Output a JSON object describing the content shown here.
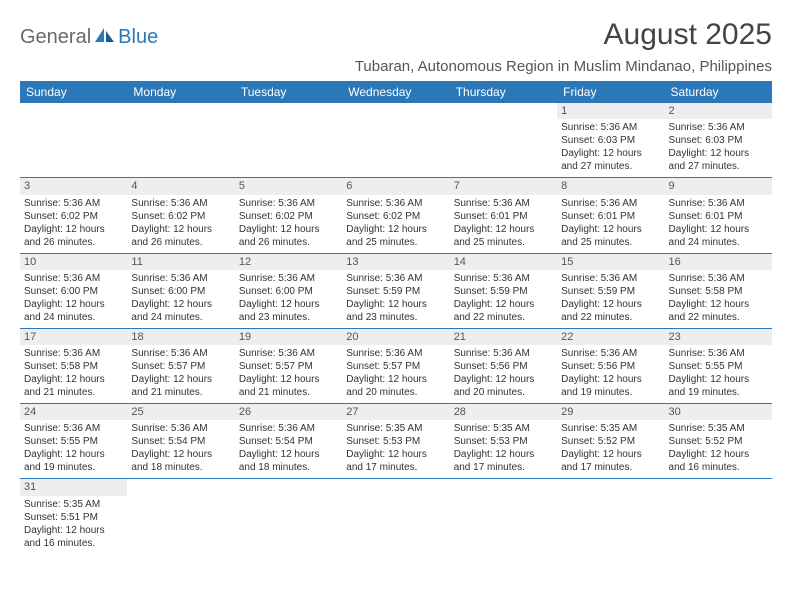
{
  "logo": {
    "general": "General",
    "blue": "Blue"
  },
  "header": {
    "month_title": "August 2025",
    "location": "Tubaran, Autonomous Region in Muslim Mindanao, Philippines"
  },
  "colors": {
    "header_bg": "#2a78b8",
    "daynum_bg": "#eeeeee",
    "rule": "#2a78b8"
  },
  "weekdays": [
    "Sunday",
    "Monday",
    "Tuesday",
    "Wednesday",
    "Thursday",
    "Friday",
    "Saturday"
  ],
  "weeks": [
    [
      null,
      null,
      null,
      null,
      null,
      {
        "n": "1",
        "sr": "Sunrise: 5:36 AM",
        "ss": "Sunset: 6:03 PM",
        "d1": "Daylight: 12 hours",
        "d2": "and 27 minutes."
      },
      {
        "n": "2",
        "sr": "Sunrise: 5:36 AM",
        "ss": "Sunset: 6:03 PM",
        "d1": "Daylight: 12 hours",
        "d2": "and 27 minutes."
      }
    ],
    [
      {
        "n": "3",
        "sr": "Sunrise: 5:36 AM",
        "ss": "Sunset: 6:02 PM",
        "d1": "Daylight: 12 hours",
        "d2": "and 26 minutes."
      },
      {
        "n": "4",
        "sr": "Sunrise: 5:36 AM",
        "ss": "Sunset: 6:02 PM",
        "d1": "Daylight: 12 hours",
        "d2": "and 26 minutes."
      },
      {
        "n": "5",
        "sr": "Sunrise: 5:36 AM",
        "ss": "Sunset: 6:02 PM",
        "d1": "Daylight: 12 hours",
        "d2": "and 26 minutes."
      },
      {
        "n": "6",
        "sr": "Sunrise: 5:36 AM",
        "ss": "Sunset: 6:02 PM",
        "d1": "Daylight: 12 hours",
        "d2": "and 25 minutes."
      },
      {
        "n": "7",
        "sr": "Sunrise: 5:36 AM",
        "ss": "Sunset: 6:01 PM",
        "d1": "Daylight: 12 hours",
        "d2": "and 25 minutes."
      },
      {
        "n": "8",
        "sr": "Sunrise: 5:36 AM",
        "ss": "Sunset: 6:01 PM",
        "d1": "Daylight: 12 hours",
        "d2": "and 25 minutes."
      },
      {
        "n": "9",
        "sr": "Sunrise: 5:36 AM",
        "ss": "Sunset: 6:01 PM",
        "d1": "Daylight: 12 hours",
        "d2": "and 24 minutes."
      }
    ],
    [
      {
        "n": "10",
        "sr": "Sunrise: 5:36 AM",
        "ss": "Sunset: 6:00 PM",
        "d1": "Daylight: 12 hours",
        "d2": "and 24 minutes."
      },
      {
        "n": "11",
        "sr": "Sunrise: 5:36 AM",
        "ss": "Sunset: 6:00 PM",
        "d1": "Daylight: 12 hours",
        "d2": "and 24 minutes."
      },
      {
        "n": "12",
        "sr": "Sunrise: 5:36 AM",
        "ss": "Sunset: 6:00 PM",
        "d1": "Daylight: 12 hours",
        "d2": "and 23 minutes."
      },
      {
        "n": "13",
        "sr": "Sunrise: 5:36 AM",
        "ss": "Sunset: 5:59 PM",
        "d1": "Daylight: 12 hours",
        "d2": "and 23 minutes."
      },
      {
        "n": "14",
        "sr": "Sunrise: 5:36 AM",
        "ss": "Sunset: 5:59 PM",
        "d1": "Daylight: 12 hours",
        "d2": "and 22 minutes."
      },
      {
        "n": "15",
        "sr": "Sunrise: 5:36 AM",
        "ss": "Sunset: 5:59 PM",
        "d1": "Daylight: 12 hours",
        "d2": "and 22 minutes."
      },
      {
        "n": "16",
        "sr": "Sunrise: 5:36 AM",
        "ss": "Sunset: 5:58 PM",
        "d1": "Daylight: 12 hours",
        "d2": "and 22 minutes."
      }
    ],
    [
      {
        "n": "17",
        "sr": "Sunrise: 5:36 AM",
        "ss": "Sunset: 5:58 PM",
        "d1": "Daylight: 12 hours",
        "d2": "and 21 minutes."
      },
      {
        "n": "18",
        "sr": "Sunrise: 5:36 AM",
        "ss": "Sunset: 5:57 PM",
        "d1": "Daylight: 12 hours",
        "d2": "and 21 minutes."
      },
      {
        "n": "19",
        "sr": "Sunrise: 5:36 AM",
        "ss": "Sunset: 5:57 PM",
        "d1": "Daylight: 12 hours",
        "d2": "and 21 minutes."
      },
      {
        "n": "20",
        "sr": "Sunrise: 5:36 AM",
        "ss": "Sunset: 5:57 PM",
        "d1": "Daylight: 12 hours",
        "d2": "and 20 minutes."
      },
      {
        "n": "21",
        "sr": "Sunrise: 5:36 AM",
        "ss": "Sunset: 5:56 PM",
        "d1": "Daylight: 12 hours",
        "d2": "and 20 minutes."
      },
      {
        "n": "22",
        "sr": "Sunrise: 5:36 AM",
        "ss": "Sunset: 5:56 PM",
        "d1": "Daylight: 12 hours",
        "d2": "and 19 minutes."
      },
      {
        "n": "23",
        "sr": "Sunrise: 5:36 AM",
        "ss": "Sunset: 5:55 PM",
        "d1": "Daylight: 12 hours",
        "d2": "and 19 minutes."
      }
    ],
    [
      {
        "n": "24",
        "sr": "Sunrise: 5:36 AM",
        "ss": "Sunset: 5:55 PM",
        "d1": "Daylight: 12 hours",
        "d2": "and 19 minutes."
      },
      {
        "n": "25",
        "sr": "Sunrise: 5:36 AM",
        "ss": "Sunset: 5:54 PM",
        "d1": "Daylight: 12 hours",
        "d2": "and 18 minutes."
      },
      {
        "n": "26",
        "sr": "Sunrise: 5:36 AM",
        "ss": "Sunset: 5:54 PM",
        "d1": "Daylight: 12 hours",
        "d2": "and 18 minutes."
      },
      {
        "n": "27",
        "sr": "Sunrise: 5:35 AM",
        "ss": "Sunset: 5:53 PM",
        "d1": "Daylight: 12 hours",
        "d2": "and 17 minutes."
      },
      {
        "n": "28",
        "sr": "Sunrise: 5:35 AM",
        "ss": "Sunset: 5:53 PM",
        "d1": "Daylight: 12 hours",
        "d2": "and 17 minutes."
      },
      {
        "n": "29",
        "sr": "Sunrise: 5:35 AM",
        "ss": "Sunset: 5:52 PM",
        "d1": "Daylight: 12 hours",
        "d2": "and 17 minutes."
      },
      {
        "n": "30",
        "sr": "Sunrise: 5:35 AM",
        "ss": "Sunset: 5:52 PM",
        "d1": "Daylight: 12 hours",
        "d2": "and 16 minutes."
      }
    ],
    [
      {
        "n": "31",
        "sr": "Sunrise: 5:35 AM",
        "ss": "Sunset: 5:51 PM",
        "d1": "Daylight: 12 hours",
        "d2": "and 16 minutes."
      },
      null,
      null,
      null,
      null,
      null,
      null
    ]
  ]
}
